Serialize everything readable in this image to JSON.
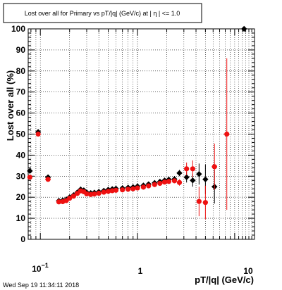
{
  "chart_data": {
    "type": "scatter",
    "title": "Lost over all for Primary vs pT/|q| (GeV/c) at |   η | <= 1.0",
    "xlabel": "pT/|q| (GeV/c)",
    "ylabel": "Lost over all (%)",
    "xscale": "log",
    "xlim": [
      0.075,
      16
    ],
    "ylim": [
      0,
      100
    ],
    "grid": true,
    "x_tick_labels": [
      "10",
      "1",
      "10"
    ],
    "y_tick_labels": [
      "0",
      "10",
      "20",
      "30",
      "40",
      "50",
      "60",
      "70",
      "80",
      "90",
      "100"
    ],
    "timestamp": "Wed Sep 19 11:34:11 2018",
    "series": [
      {
        "color": "#000000",
        "marker": "diamond",
        "points": [
          {
            "x": 0.078,
            "y": 32.5,
            "ex": 0.002,
            "ey": 0.5
          },
          {
            "x": 0.095,
            "y": 51,
            "ex": 0.005,
            "ey": 1
          },
          {
            "x": 0.12,
            "y": 29.5,
            "ex": 0.008,
            "ey": 0.5
          },
          {
            "x": 0.155,
            "y": 18.3,
            "ex": 0.003,
            "ey": 0.4
          },
          {
            "x": 0.17,
            "y": 18.5,
            "ex": 0.003,
            "ey": 0.4
          },
          {
            "x": 0.185,
            "y": 19,
            "ex": 0.003,
            "ey": 0.4
          },
          {
            "x": 0.2,
            "y": 20,
            "ex": 0.003,
            "ey": 0.4
          },
          {
            "x": 0.22,
            "y": 21,
            "ex": 0.003,
            "ey": 0.4
          },
          {
            "x": 0.24,
            "y": 22.3,
            "ex": 0.003,
            "ey": 0.4
          },
          {
            "x": 0.26,
            "y": 23.7,
            "ex": 0.003,
            "ey": 0.4
          },
          {
            "x": 0.28,
            "y": 23.3,
            "ex": 0.003,
            "ey": 0.4
          },
          {
            "x": 0.3,
            "y": 22.3,
            "ex": 0.003,
            "ey": 0.4
          },
          {
            "x": 0.33,
            "y": 22,
            "ex": 0.003,
            "ey": 0.4
          },
          {
            "x": 0.36,
            "y": 22.2,
            "ex": 0.003,
            "ey": 0.4
          },
          {
            "x": 0.4,
            "y": 22.6,
            "ex": 0.003,
            "ey": 0.4
          },
          {
            "x": 0.45,
            "y": 23.1,
            "ex": 0.003,
            "ey": 0.4
          },
          {
            "x": 0.5,
            "y": 23.6,
            "ex": 0.003,
            "ey": 0.4
          },
          {
            "x": 0.55,
            "y": 23.9,
            "ex": 0.003,
            "ey": 0.4
          },
          {
            "x": 0.6,
            "y": 24.1,
            "ex": 0.003,
            "ey": 0.4
          },
          {
            "x": 0.7,
            "y": 24.3,
            "ex": 0.003,
            "ey": 0.4
          },
          {
            "x": 0.8,
            "y": 24.6,
            "ex": 0.003,
            "ey": 0.4
          },
          {
            "x": 0.9,
            "y": 24.8,
            "ex": 0.003,
            "ey": 0.4
          },
          {
            "x": 1.0,
            "y": 25.2,
            "ex": 0.003,
            "ey": 0.4
          },
          {
            "x": 1.15,
            "y": 25.6,
            "ex": 0.003,
            "ey": 0.4
          },
          {
            "x": 1.3,
            "y": 26.2,
            "ex": 0.003,
            "ey": 0.5
          },
          {
            "x": 1.5,
            "y": 26.8,
            "ex": 0.003,
            "ey": 0.5
          },
          {
            "x": 1.7,
            "y": 27.4,
            "ex": 0.003,
            "ey": 0.5
          },
          {
            "x": 1.9,
            "y": 28,
            "ex": 0.003,
            "ey": 0.6
          },
          {
            "x": 2.1,
            "y": 28.4,
            "ex": 0.003,
            "ey": 0.6
          },
          {
            "x": 2.4,
            "y": 28.6,
            "ex": 0.003,
            "ey": 0.7
          },
          {
            "x": 2.7,
            "y": 31.5,
            "ex": 0.05,
            "ey": 1.5
          },
          {
            "x": 3.2,
            "y": 29.5,
            "ex": 0.1,
            "ey": 2.5
          },
          {
            "x": 3.7,
            "y": 28,
            "ex": 0.15,
            "ey": 3
          },
          {
            "x": 4.3,
            "y": 31,
            "ex": 0.2,
            "ey": 5
          },
          {
            "x": 5.0,
            "y": 28.5,
            "ex": 0.3,
            "ey": 7
          },
          {
            "x": 6.2,
            "y": 25,
            "ex": 0.4,
            "ey": 8
          },
          {
            "x": 12.5,
            "y": 100,
            "ex": 0.5,
            "ey": 0
          }
        ]
      },
      {
        "color": "#ee1111",
        "marker": "circle",
        "points": [
          {
            "x": 0.078,
            "y": 29.5,
            "ex": 0.002,
            "ey": 0.5
          },
          {
            "x": 0.095,
            "y": 50,
            "ex": 0.005,
            "ey": 1
          },
          {
            "x": 0.12,
            "y": 28.5,
            "ex": 0.008,
            "ey": 0.5
          },
          {
            "x": 0.155,
            "y": 17.8,
            "ex": 0.003,
            "ey": 0.4
          },
          {
            "x": 0.17,
            "y": 17.9,
            "ex": 0.003,
            "ey": 0.4
          },
          {
            "x": 0.185,
            "y": 18.4,
            "ex": 0.003,
            "ey": 0.4
          },
          {
            "x": 0.2,
            "y": 19.5,
            "ex": 0.003,
            "ey": 0.4
          },
          {
            "x": 0.22,
            "y": 20.5,
            "ex": 0.003,
            "ey": 0.4
          },
          {
            "x": 0.24,
            "y": 21.8,
            "ex": 0.003,
            "ey": 0.4
          },
          {
            "x": 0.26,
            "y": 23,
            "ex": 0.003,
            "ey": 0.4
          },
          {
            "x": 0.28,
            "y": 22.6,
            "ex": 0.003,
            "ey": 0.4
          },
          {
            "x": 0.3,
            "y": 21.6,
            "ex": 0.003,
            "ey": 0.4
          },
          {
            "x": 0.33,
            "y": 21.3,
            "ex": 0.003,
            "ey": 0.4
          },
          {
            "x": 0.36,
            "y": 21.5,
            "ex": 0.003,
            "ey": 0.4
          },
          {
            "x": 0.4,
            "y": 21.9,
            "ex": 0.003,
            "ey": 0.4
          },
          {
            "x": 0.45,
            "y": 22.4,
            "ex": 0.003,
            "ey": 0.4
          },
          {
            "x": 0.5,
            "y": 22.8,
            "ex": 0.003,
            "ey": 0.4
          },
          {
            "x": 0.55,
            "y": 23.1,
            "ex": 0.003,
            "ey": 0.4
          },
          {
            "x": 0.6,
            "y": 23.3,
            "ex": 0.003,
            "ey": 0.4
          },
          {
            "x": 0.7,
            "y": 23.5,
            "ex": 0.003,
            "ey": 0.4
          },
          {
            "x": 0.8,
            "y": 23.8,
            "ex": 0.003,
            "ey": 0.4
          },
          {
            "x": 0.9,
            "y": 24,
            "ex": 0.003,
            "ey": 0.4
          },
          {
            "x": 1.0,
            "y": 24.4,
            "ex": 0.003,
            "ey": 0.4
          },
          {
            "x": 1.15,
            "y": 24.8,
            "ex": 0.003,
            "ey": 0.4
          },
          {
            "x": 1.3,
            "y": 25.4,
            "ex": 0.003,
            "ey": 0.5
          },
          {
            "x": 1.5,
            "y": 26,
            "ex": 0.003,
            "ey": 0.5
          },
          {
            "x": 1.7,
            "y": 26.6,
            "ex": 0.003,
            "ey": 0.5
          },
          {
            "x": 1.9,
            "y": 27.2,
            "ex": 0.003,
            "ey": 0.6
          },
          {
            "x": 2.1,
            "y": 27.5,
            "ex": 0.003,
            "ey": 0.6
          },
          {
            "x": 2.4,
            "y": 27.8,
            "ex": 0.003,
            "ey": 0.7
          },
          {
            "x": 2.7,
            "y": 27,
            "ex": 0.05,
            "ey": 1.5
          },
          {
            "x": 3.2,
            "y": 33.5,
            "ex": 0.1,
            "ey": 3
          },
          {
            "x": 3.7,
            "y": 33.5,
            "ex": 0.15,
            "ey": 4
          },
          {
            "x": 4.3,
            "y": 18,
            "ex": 0.2,
            "ey": 7
          },
          {
            "x": 5.0,
            "y": 17.5,
            "ex": 0.3,
            "ey": 8
          },
          {
            "x": 6.2,
            "y": 34.5,
            "ex": 0.4,
            "ey": 11
          },
          {
            "x": 8.3,
            "y": 50,
            "ex": 0.6,
            "ey": 36
          }
        ]
      }
    ]
  }
}
